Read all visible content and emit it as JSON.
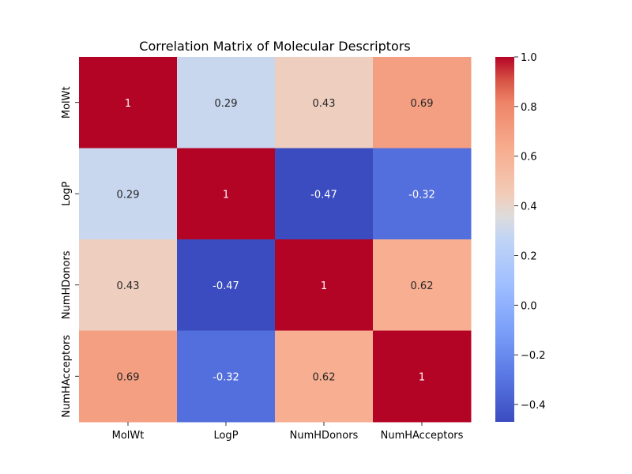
{
  "chart_data": {
    "type": "heatmap",
    "title": "Correlation Matrix of Molecular Descriptors",
    "xlabel": "",
    "ylabel": "",
    "x_categories": [
      "MolWt",
      "LogP",
      "NumHDonors",
      "NumHAcceptors"
    ],
    "y_categories": [
      "MolWt",
      "LogP",
      "NumHDonors",
      "NumHAcceptors"
    ],
    "values": [
      [
        1,
        0.29,
        0.43,
        0.69
      ],
      [
        0.29,
        1,
        -0.47,
        -0.32
      ],
      [
        0.43,
        -0.47,
        1,
        0.62
      ],
      [
        0.69,
        -0.32,
        0.62,
        1
      ]
    ],
    "cell_labels": [
      [
        "1",
        "0.29",
        "0.43",
        "0.69"
      ],
      [
        "0.29",
        "1",
        "-0.47",
        "-0.32"
      ],
      [
        "0.43",
        "-0.47",
        "1",
        "0.62"
      ],
      [
        "0.69",
        "-0.32",
        "0.62",
        "1"
      ]
    ],
    "colormap": "coolwarm",
    "color_range": [
      -0.47,
      1.0
    ],
    "colorbar_ticks": [
      1.0,
      0.8,
      0.6,
      0.4,
      0.2,
      0.0,
      -0.2,
      -0.4
    ],
    "colorbar_tick_labels": [
      "1.0",
      "0.8",
      "0.6",
      "0.4",
      "0.2",
      "0.0",
      "−0.2",
      "−0.4"
    ]
  }
}
